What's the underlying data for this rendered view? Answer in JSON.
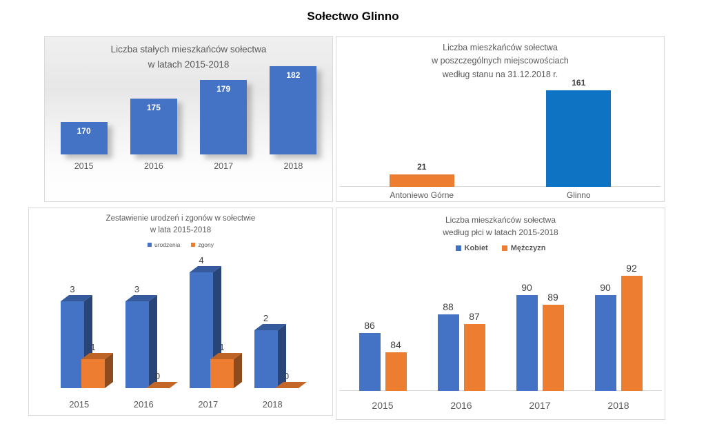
{
  "page_title": "Sołectwo Glinno",
  "colors": {
    "excel_blue": "#4472C4",
    "excel_orange": "#ED7D31",
    "bright_blue": "#0E73C2",
    "title_gray": "#595959",
    "value_gray": "#404040",
    "axis_gray": "#D9D9D9"
  },
  "chart_data": [
    {
      "id": "stali-mieszkancy",
      "type": "bar",
      "title": "Liczba stałych mieszkańców sołectwa\nw latach 2015-2018",
      "categories": [
        "2015",
        "2016",
        "2017",
        "2018"
      ],
      "values": [
        170,
        175,
        179,
        182
      ],
      "ylim": [
        163,
        184
      ],
      "bar_color": "#4472C4",
      "value_label_position": "inside-top",
      "grid": false,
      "legend": null
    },
    {
      "id": "mieszkancy-miejscowosci",
      "type": "bar",
      "title": "Liczba mieszkańców sołectwa\nw poszczególnych miejscowościach\nwedług stanu na 31.12.2018 r.",
      "categories": [
        "Antoniewo Górne",
        "Glinno"
      ],
      "values": [
        21,
        161
      ],
      "ylim": [
        0,
        170
      ],
      "bar_colors": [
        "#ED7D31",
        "#0E73C2"
      ],
      "value_label_position": "above",
      "grid": false,
      "legend": null
    },
    {
      "id": "urodzenia-zgony",
      "type": "bar",
      "style_3d": true,
      "title": "Zestawienie urodzeń i zgonów w sołectwie\nw lata 2015-2018",
      "categories": [
        "2015",
        "2016",
        "2017",
        "2018"
      ],
      "series": [
        {
          "name": "urodzenia",
          "color": "#4472C4",
          "values": [
            3,
            3,
            4,
            2
          ]
        },
        {
          "name": "zgony",
          "color": "#ED7D31",
          "values": [
            1,
            0,
            1,
            0
          ]
        }
      ],
      "ylim": [
        0,
        4.45
      ],
      "value_label_position": "above",
      "grid": false,
      "legend_position": "top"
    },
    {
      "id": "mieszkancy-plec",
      "type": "bar",
      "title": "Liczba mieszkańców sołectwa\nwedług płci w latach 2015-2018",
      "categories": [
        "2015",
        "2016",
        "2017",
        "2018"
      ],
      "series": [
        {
          "name": "Kobiet",
          "color": "#4472C4",
          "values": [
            86,
            88,
            90,
            90
          ]
        },
        {
          "name": "Mężczyzn",
          "color": "#ED7D31",
          "values": [
            84,
            87,
            89,
            92
          ]
        }
      ],
      "ylim": [
        80,
        95
      ],
      "value_label_position": "above",
      "grid": false,
      "legend_position": "top"
    }
  ]
}
